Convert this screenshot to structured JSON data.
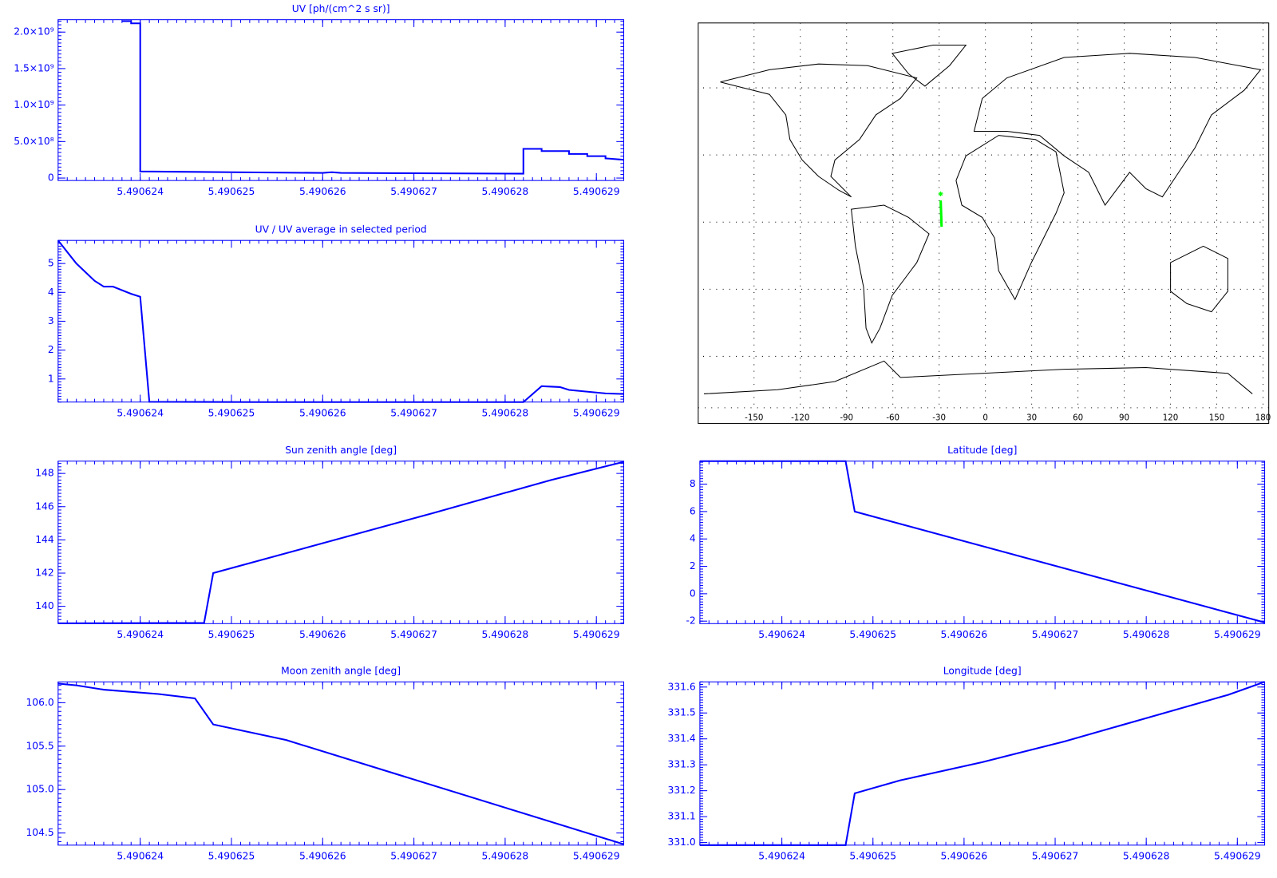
{
  "chart_data": [
    {
      "type": "line",
      "title": "UV [ph/(cm^2 s sr)]",
      "color": "#0000ff",
      "x": [
        5.4906238,
        5.4906239,
        5.4906239,
        5.490624,
        5.490624,
        5.490625,
        5.490626,
        5.4906261,
        5.4906262,
        5.4906282,
        5.4906282,
        5.4906284,
        5.4906284,
        5.4906287,
        5.4906287,
        5.4906289,
        5.4906289,
        5.4906291,
        5.4906291,
        5.4906293
      ],
      "values": [
        2150000000,
        2150000000,
        2120000000,
        2120000000,
        90000000,
        80000000,
        70000000,
        80000000,
        70000000,
        60000000,
        400000000,
        400000000,
        370000000,
        370000000,
        330000000,
        330000000,
        300000000,
        300000000,
        270000000,
        250000000
      ],
      "xlim": [
        5.4906231,
        5.4906293
      ],
      "ylim": [
        -34000000,
        2170000000
      ],
      "xticks": [
        5.490624,
        5.490625,
        5.490626,
        5.490627,
        5.490628,
        5.490629
      ],
      "yticks": [
        0,
        {
          "value": 500000000,
          "label": "5.0×10⁸"
        },
        {
          "value": 1000000000,
          "label": "1.0×10⁹"
        },
        {
          "value": 1500000000,
          "label": "1.5×10⁹"
        },
        {
          "value": 2000000000,
          "label": "2.0×10⁹"
        }
      ]
    },
    {
      "type": "line",
      "title": "UV / UV average in selected period",
      "color": "#0000ff",
      "x": [
        5.4906231,
        5.4906233,
        5.4906235,
        5.4906236,
        5.4906237,
        5.4906239,
        5.490624,
        5.4906241,
        5.4906253,
        5.4906282,
        5.4906284,
        5.4906286,
        5.4906287,
        5.4906291,
        5.4906293
      ],
      "values": [
        5.8,
        5.0,
        4.4,
        4.2,
        4.2,
        3.95,
        3.85,
        0.21,
        0.2,
        0.2,
        0.75,
        0.72,
        0.62,
        0.5,
        0.48
      ],
      "xlim": [
        5.4906231,
        5.4906293
      ],
      "ylim": [
        0.2,
        5.8
      ],
      "xticks": [
        5.490624,
        5.490625,
        5.490626,
        5.490627,
        5.490628,
        5.490629
      ],
      "yticks": [
        1,
        2,
        3,
        4,
        5
      ]
    },
    {
      "type": "map",
      "xlim": [
        -183,
        180
      ],
      "ylim": [
        -83,
        89
      ],
      "xticks": [
        -150,
        -120,
        -90,
        -60,
        -30,
        0,
        30,
        60,
        90,
        120,
        150,
        180
      ],
      "ygrid": [
        -60,
        -30,
        0,
        30,
        60
      ],
      "grid": true,
      "track": {
        "x": [
          -29.0,
          -28.4
        ],
        "values": [
          9.68,
          -2.1
        ],
        "color": "#00ff00"
      }
    },
    {
      "type": "line",
      "title": "Sun zenith angle [deg]",
      "color": "#0000ff",
      "x": [
        5.4906231,
        5.4906247,
        5.4906248,
        5.4906272,
        5.4906285,
        5.4906293
      ],
      "values": [
        138.98,
        139.0,
        142.0,
        145.6,
        147.6,
        148.7
      ],
      "xlim": [
        5.4906231,
        5.4906293
      ],
      "ylim": [
        138.96,
        148.74
      ],
      "xticks": [
        5.490624,
        5.490625,
        5.490626,
        5.490627,
        5.490628,
        5.490629
      ],
      "yticks": [
        140,
        142,
        144,
        146,
        148
      ]
    },
    {
      "type": "line",
      "title": "Latitude [deg]",
      "color": "#0000ff",
      "x": [
        5.4906231,
        5.4906247,
        5.4906248,
        5.4906253,
        5.4906293
      ],
      "values": [
        9.68,
        9.68,
        6.0,
        5.1,
        -2.1
      ],
      "xlim": [
        5.4906231,
        5.4906293
      ],
      "ylim": [
        -2.18,
        9.68
      ],
      "xticks": [
        5.490624,
        5.490625,
        5.490626,
        5.490627,
        5.490628,
        5.490629
      ],
      "yticks": [
        -2,
        0,
        2,
        4,
        6,
        8
      ]
    },
    {
      "type": "line",
      "title": "Moon zenith angle [deg]",
      "color": "#0000ff",
      "x": [
        5.4906231,
        5.4906233,
        5.4906236,
        5.4906242,
        5.4906246,
        5.4906248,
        5.4906256,
        5.4906293
      ],
      "values": [
        106.22,
        106.2,
        106.15,
        106.1,
        106.05,
        105.75,
        105.57,
        104.37
      ],
      "xlim": [
        5.4906231,
        5.4906293
      ],
      "ylim": [
        104.36,
        106.24
      ],
      "xticks": [
        5.490624,
        5.490625,
        5.490626,
        5.490627,
        5.490628,
        5.490629
      ],
      "yticks": [
        104.5,
        {
          "value": 105,
          "label": "105.0"
        },
        105.5,
        {
          "value": 106,
          "label": "106.0"
        }
      ]
    },
    {
      "type": "line",
      "title": "Longitude [deg]",
      "color": "#0000ff",
      "x": [
        5.4906231,
        5.4906247,
        5.4906248,
        5.4906253,
        5.4906262,
        5.4906271,
        5.490628,
        5.4906289,
        5.4906293
      ],
      "values": [
        330.99,
        330.99,
        331.19,
        331.24,
        331.31,
        331.39,
        331.48,
        331.57,
        331.62
      ],
      "xlim": [
        5.4906231,
        5.4906293
      ],
      "ylim": [
        330.99,
        331.62
      ],
      "xticks": [
        5.490624,
        5.490625,
        5.490626,
        5.490627,
        5.490628,
        5.490629
      ],
      "yticks": [
        {
          "value": 331,
          "label": "331.0"
        },
        331.1,
        331.2,
        331.3,
        331.4,
        331.5,
        331.6
      ]
    }
  ]
}
